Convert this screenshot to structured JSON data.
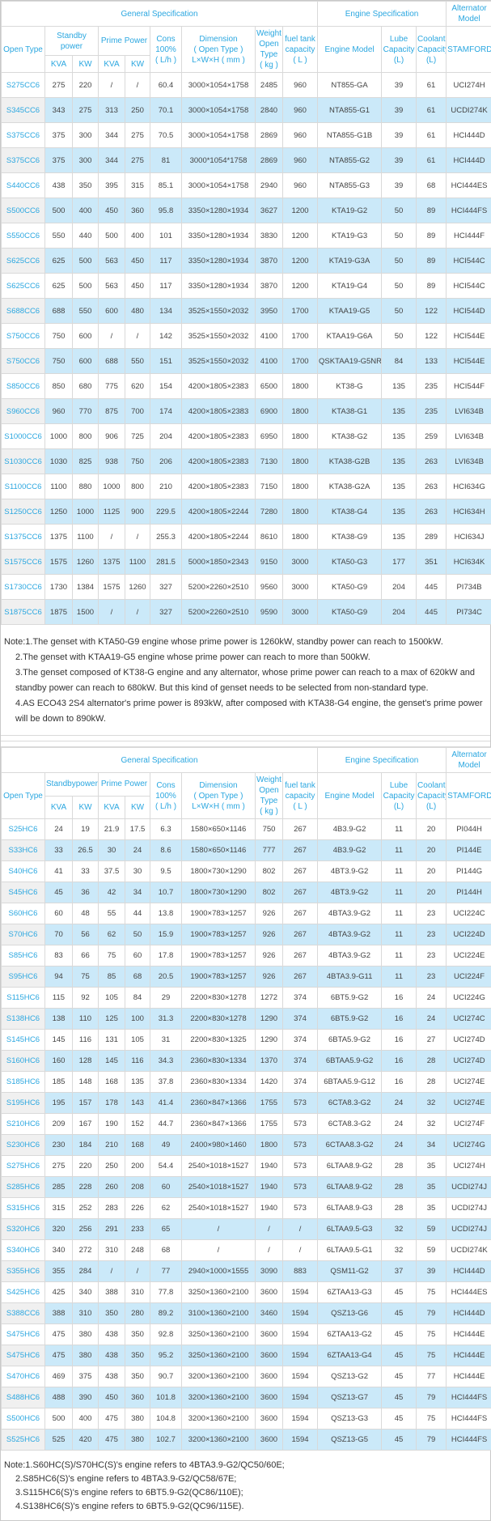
{
  "colors": {
    "header_blue": "#2ba7e0",
    "link_blue": "#2ba7e0",
    "alt_row_blue": "#cbe9f9",
    "model_col_gray": "#f0f0f0",
    "border_gray": "#d9d9d9",
    "data_text": "#444444",
    "note_text": "#333333"
  },
  "table1": {
    "header": {
      "general": "General Specification",
      "engine": "Engine Specification",
      "alternator": "Alternator\nModel",
      "open_type": "Open Type",
      "standby": "Standby\npower",
      "prime": "Prime Power",
      "kva": "KVA",
      "kw": "KW",
      "cons": "Cons\n100%\n( L/h )",
      "dimension": "Dimension\n( Open Type )\nL×W×H ( mm )",
      "weight": "Weight\nOpen Type\n( kg )",
      "fuel": "fuel tank\ncapacity\n( L )",
      "engine_model": "Engine Model",
      "lube": "Lube\nCapacity\n(L)",
      "coolant": "Coolant\nCapacity\n(L)",
      "stamford": "STAMFORD"
    },
    "rows": [
      [
        "S275CC6",
        "275",
        "220",
        "/",
        "/",
        "60.4",
        "3000×1054×1758",
        "2485",
        "960",
        "NT855-GA",
        "39",
        "61",
        "UCI274H"
      ],
      [
        "S345CC6",
        "343",
        "275",
        "313",
        "250",
        "70.1",
        "3000×1054×1758",
        "2840",
        "960",
        "NTA855-G1",
        "39",
        "61",
        "UCDI274K"
      ],
      [
        "S375CC6",
        "375",
        "300",
        "344",
        "275",
        "70.5",
        "3000×1054×1758",
        "2869",
        "960",
        "NTA855-G1B",
        "39",
        "61",
        "HCI444D"
      ],
      [
        "S375CC6",
        "375",
        "300",
        "344",
        "275",
        "81",
        "3000*1054*1758",
        "2869",
        "960",
        "NTA855-G2",
        "39",
        "61",
        "HCI444D"
      ],
      [
        "S440CC6",
        "438",
        "350",
        "395",
        "315",
        "85.1",
        "3000×1054×1758",
        "2940",
        "960",
        "NTA855-G3",
        "39",
        "68",
        "HCI444ES"
      ],
      [
        "S500CC6",
        "500",
        "400",
        "450",
        "360",
        "95.8",
        "3350×1280×1934",
        "3627",
        "1200",
        "KTA19-G2",
        "50",
        "89",
        "HCI444FS"
      ],
      [
        "S550CC6",
        "550",
        "440",
        "500",
        "400",
        "101",
        "3350×1280×1934",
        "3830",
        "1200",
        "KTA19-G3",
        "50",
        "89",
        "HCI444F"
      ],
      [
        "S625CC6",
        "625",
        "500",
        "563",
        "450",
        "117",
        "3350×1280×1934",
        "3870",
        "1200",
        "KTA19-G3A",
        "50",
        "89",
        "HCI544C"
      ],
      [
        "S625CC6",
        "625",
        "500",
        "563",
        "450",
        "117",
        "3350×1280×1934",
        "3870",
        "1200",
        "KTA19-G4",
        "50",
        "89",
        "HCI544C"
      ],
      [
        "S688CC6",
        "688",
        "550",
        "600",
        "480",
        "134",
        "3525×1550×2032",
        "3950",
        "1700",
        "KTAA19-G5",
        "50",
        "122",
        "HCI544D"
      ],
      [
        "S750CC6",
        "750",
        "600",
        "/",
        "/",
        "142",
        "3525×1550×2032",
        "4100",
        "1700",
        "KTAA19-G6A",
        "50",
        "122",
        "HCI544E"
      ],
      [
        "S750CC6",
        "750",
        "600",
        "688",
        "550",
        "151",
        "3525×1550×2032",
        "4100",
        "1700",
        "QSKTAA19-G5NR2",
        "84",
        "133",
        "HCI544E"
      ],
      [
        "S850CC6",
        "850",
        "680",
        "775",
        "620",
        "154",
        "4200×1805×2383",
        "6500",
        "1800",
        "KT38-G",
        "135",
        "235",
        "HCI544F"
      ],
      [
        "S960CC6",
        "960",
        "770",
        "875",
        "700",
        "174",
        "4200×1805×2383",
        "6900",
        "1800",
        "KTA38-G1",
        "135",
        "235",
        "LVI634B"
      ],
      [
        "S1000CC6",
        "1000",
        "800",
        "906",
        "725",
        "204",
        "4200×1805×2383",
        "6950",
        "1800",
        "KTA38-G2",
        "135",
        "259",
        "LVI634B"
      ],
      [
        "S1030CC6",
        "1030",
        "825",
        "938",
        "750",
        "206",
        "4200×1805×2383",
        "7130",
        "1800",
        "KTA38-G2B",
        "135",
        "263",
        "LVI634B"
      ],
      [
        "S1100CC6",
        "1100",
        "880",
        "1000",
        "800",
        "210",
        "4200×1805×2383",
        "7150",
        "1800",
        "KTA38-G2A",
        "135",
        "263",
        "HCI634G"
      ],
      [
        "S1250CC6",
        "1250",
        "1000",
        "1125",
        "900",
        "229.5",
        "4200×1805×2244",
        "7280",
        "1800",
        "KTA38-G4",
        "135",
        "263",
        "HCI634H"
      ],
      [
        "S1375CC6",
        "1375",
        "1100",
        "/",
        "/",
        "255.3",
        "4200×1805×2244",
        "8610",
        "1800",
        "KTA38-G9",
        "135",
        "289",
        "HCI634J"
      ],
      [
        "S1575CC6",
        "1575",
        "1260",
        "1375",
        "1100",
        "281.5",
        "5000×1850×2343",
        "9150",
        "3000",
        "KTA50-G3",
        "177",
        "351",
        "HCI634K"
      ],
      [
        "S1730CC6",
        "1730",
        "1384",
        "1575",
        "1260",
        "327",
        "5200×2260×2510",
        "9560",
        "3000",
        "KTA50-G9",
        "204",
        "445",
        "PI734B"
      ],
      [
        "S1875CC6",
        "1875",
        "1500",
        "/",
        "/",
        "327",
        "5200×2260×2510",
        "9590",
        "3000",
        "KTA50-G9",
        "204",
        "445",
        "PI734C"
      ]
    ]
  },
  "note1": {
    "lines": [
      {
        "text": "Note:1.The genset with KTA50-G9 engine whose prime power is 1260kW,  standby power can reach to 1500kW.",
        "indent": false
      },
      {
        "text": "2.The genset with KTAA19-G5 engine whose prime power can reach to more than 500kW.",
        "indent": true
      },
      {
        "text": "3.The genset composed of KT38-G engine and any alternator, whose prime power can reach to a max of 620kW and standby power can reach to 680kW. But this kind of genset needs to be selected from non-standard type.",
        "indent": true
      },
      {
        "text": "4.AS ECO43 2S4 alternator's prime power is 893kW, after composed with KTA38-G4 engine, the genset's prime power will be down to 890kW.",
        "indent": true
      }
    ]
  },
  "table2": {
    "header": {
      "general": "General Specification",
      "engine": "Engine Specification",
      "alternator": "Alternator\nModel",
      "open_type": "Open Type",
      "standby": "Standbypower",
      "prime": "Prime Power",
      "kva": "KVA",
      "kw": "KW",
      "cons": "Cons\n100%\n( L/h )",
      "dimension": "Dimension\n( Open Type )\nL×W×H ( mm )",
      "weight": "Weight\nOpen Type\n( kg )",
      "fuel": "fuel tank\ncapacity\n( L )",
      "engine_model": "Engine Model",
      "lube": "Lube\nCapacity\n(L)",
      "coolant": "Coolant\nCapacity\n(L)",
      "stamford": "STAMFORD"
    },
    "rows": [
      [
        "S25HC6",
        "24",
        "19",
        "21.9",
        "17.5",
        "6.3",
        "1580×650×1146",
        "750",
        "267",
        "4B3.9-G2",
        "11",
        "20",
        "PI044H"
      ],
      [
        "S33HC6",
        "33",
        "26.5",
        "30",
        "24",
        "8.6",
        "1580×650×1146",
        "777",
        "267",
        "4B3.9-G2",
        "11",
        "20",
        "PI144E"
      ],
      [
        "S40HC6",
        "41",
        "33",
        "37.5",
        "30",
        "9.5",
        "1800×730×1290",
        "802",
        "267",
        "4BT3.9-G2",
        "11",
        "20",
        "PI144G"
      ],
      [
        "S45HC6",
        "45",
        "36",
        "42",
        "34",
        "10.7",
        "1800×730×1290",
        "802",
        "267",
        "4BT3.9-G2",
        "11",
        "20",
        "PI144H"
      ],
      [
        "S60HC6",
        "60",
        "48",
        "55",
        "44",
        "13.8",
        "1900×783×1257",
        "926",
        "267",
        "4BTA3.9-G2",
        "11",
        "23",
        "UCI224C"
      ],
      [
        "S70HC6",
        "70",
        "56",
        "62",
        "50",
        "15.9",
        "1900×783×1257",
        "926",
        "267",
        "4BTA3.9-G2",
        "11",
        "23",
        "UCI224D"
      ],
      [
        "S85HC6",
        "83",
        "66",
        "75",
        "60",
        "17.8",
        "1900×783×1257",
        "926",
        "267",
        "4BTA3.9-G2",
        "11",
        "23",
        "UCI224E"
      ],
      [
        "S95HC6",
        "94",
        "75",
        "85",
        "68",
        "20.5",
        "1900×783×1257",
        "926",
        "267",
        "4BTA3.9-G11",
        "11",
        "23",
        "UCI224F"
      ],
      [
        "S115HC6",
        "115",
        "92",
        "105",
        "84",
        "29",
        "2200×830×1278",
        "1272",
        "374",
        "6BT5.9-G2",
        "16",
        "24",
        "UCI224G"
      ],
      [
        "S138HC6",
        "138",
        "110",
        "125",
        "100",
        "31.3",
        "2200×830×1278",
        "1290",
        "374",
        "6BT5.9-G2",
        "16",
        "24",
        "UCI274C"
      ],
      [
        "S145HC6",
        "145",
        "116",
        "131",
        "105",
        "31",
        "2200×830×1325",
        "1290",
        "374",
        "6BTA5.9-G2",
        "16",
        "27",
        "UCI274D"
      ],
      [
        "S160HC6",
        "160",
        "128",
        "145",
        "116",
        "34.3",
        "2360×830×1334",
        "1370",
        "374",
        "6BTAA5.9-G2",
        "16",
        "28",
        "UCI274D"
      ],
      [
        "S185HC6",
        "185",
        "148",
        "168",
        "135",
        "37.8",
        "2360×830×1334",
        "1420",
        "374",
        "6BTAA5.9-G12",
        "16",
        "28",
        "UCI274E"
      ],
      [
        "S195HC6",
        "195",
        "157",
        "178",
        "143",
        "41.4",
        "2360×847×1366",
        "1755",
        "573",
        "6CTA8.3-G2",
        "24",
        "32",
        "UCI274E"
      ],
      [
        "S210HC6",
        "209",
        "167",
        "190",
        "152",
        "44.7",
        "2360×847×1366",
        "1755",
        "573",
        "6CTA8.3-G2",
        "24",
        "32",
        "UCI274F"
      ],
      [
        "S230HC6",
        "230",
        "184",
        "210",
        "168",
        "49",
        "2400×980×1460",
        "1800",
        "573",
        "6CTAA8.3-G2",
        "24",
        "34",
        "UCI274G"
      ],
      [
        "S275HC6",
        "275",
        "220",
        "250",
        "200",
        "54.4",
        "2540×1018×1527",
        "1940",
        "573",
        "6LTAA8.9-G2",
        "28",
        "35",
        "UCI274H"
      ],
      [
        "S285HC6",
        "285",
        "228",
        "260",
        "208",
        "60",
        "2540×1018×1527",
        "1940",
        "573",
        "6LTAA8.9-G2",
        "28",
        "35",
        "UCDI274J"
      ],
      [
        "S315HC6",
        "315",
        "252",
        "283",
        "226",
        "62",
        "2540×1018×1527",
        "1940",
        "573",
        "6LTAA8.9-G3",
        "28",
        "35",
        "UCDI274J"
      ],
      [
        "S320HC6",
        "320",
        "256",
        "291",
        "233",
        "65",
        "/",
        "/",
        "/",
        "6LTAA9.5-G3",
        "32",
        "59",
        "UCDI274J"
      ],
      [
        "S340HC6",
        "340",
        "272",
        "310",
        "248",
        "68",
        "/",
        "/",
        "/",
        "6LTAA9.5-G1",
        "32",
        "59",
        "UCDI274K"
      ],
      [
        "S355HC6",
        "355",
        "284",
        "/",
        "/",
        "77",
        "2940×1000×1555",
        "3090",
        "883",
        "QSM11-G2",
        "37",
        "39",
        "HCI444D"
      ],
      [
        "S425HC6",
        "425",
        "340",
        "388",
        "310",
        "77.8",
        "3250×1360×2100",
        "3600",
        "1594",
        "6ZTAA13-G3",
        "45",
        "75",
        "HCI444ES"
      ],
      [
        "S388CC6",
        "388",
        "310",
        "350",
        "280",
        "89.2",
        "3100×1360×2100",
        "3460",
        "1594",
        "QSZ13-G6",
        "45",
        "79",
        "HCI444D"
      ],
      [
        "S475HC6",
        "475",
        "380",
        "438",
        "350",
        "92.8",
        "3250×1360×2100",
        "3600",
        "1594",
        "6ZTAA13-G2",
        "45",
        "75",
        "HCI444E"
      ],
      [
        "S475HC6",
        "475",
        "380",
        "438",
        "350",
        "95.2",
        "3250×1360×2100",
        "3600",
        "1594",
        "6ZTAA13-G4",
        "45",
        "75",
        "HCI444E"
      ],
      [
        "S470HC6",
        "469",
        "375",
        "438",
        "350",
        "90.7",
        "3200×1360×2100",
        "3600",
        "1594",
        "QSZ13-G2",
        "45",
        "77",
        "HCI444E"
      ],
      [
        "S488HC6",
        "488",
        "390",
        "450",
        "360",
        "101.8",
        "3200×1360×2100",
        "3600",
        "1594",
        "QSZ13-G7",
        "45",
        "79",
        "HCI444FS"
      ],
      [
        "S500HC6",
        "500",
        "400",
        "475",
        "380",
        "104.8",
        "3200×1360×2100",
        "3600",
        "1594",
        "QSZ13-G3",
        "45",
        "75",
        "HCI444FS"
      ],
      [
        "S525HC6",
        "525",
        "420",
        "475",
        "380",
        "102.7",
        "3200×1360×2100",
        "3600",
        "1594",
        "QSZ13-G5",
        "45",
        "79",
        "HCI444FS"
      ]
    ]
  },
  "note2": {
    "lines": [
      {
        "text": "Note:1.S60HC(S)/S70HC(S)'s engine refers to 4BTA3.9-G2/QC50/60E;",
        "indent": false
      },
      {
        "text": "2.S85HC6(S)'s engine refers to 4BTA3.9-G2/QC58/67E;",
        "indent": true
      },
      {
        "text": "3.S115HC6(S)'s engine refers to 6BT5.9-G2(QC86/110E);",
        "indent": true
      },
      {
        "text": "4.S138HC6(S)'s engine refers to 6BT5.9-G2(QC96/115E).",
        "indent": true
      }
    ]
  }
}
